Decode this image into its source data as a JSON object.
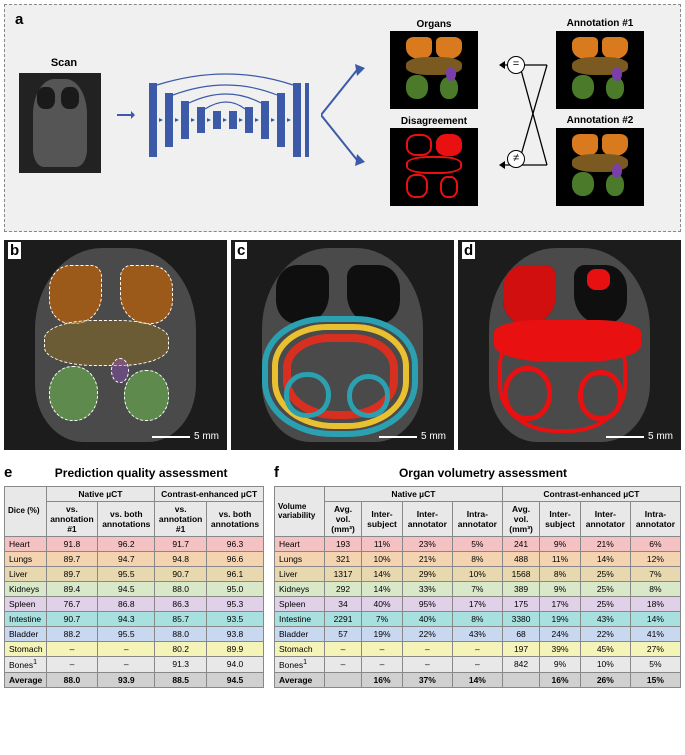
{
  "panel_a": {
    "label": "a",
    "scan_label": "Scan",
    "output_organs_label": "Organs",
    "output_disagree_label": "Disagreement",
    "annotation1_label": "Annotation #1",
    "annotation2_label": "Annotation #2",
    "eq_symbol": "=",
    "neq_symbol": "≠",
    "colors": {
      "unet_bar": "#3c5aa8",
      "arrow": "#3c5aa8",
      "lung": "#d97a1f",
      "liver": "#7a5a20",
      "kidney": "#4a7a2a",
      "spleen": "#7a3fa8",
      "disagree": "#e81010"
    }
  },
  "panel_b": {
    "label": "b",
    "scale": "5 mm"
  },
  "panel_c": {
    "label": "c",
    "scale": "5 mm"
  },
  "panel_d": {
    "label": "d",
    "scale": "5 mm"
  },
  "scale_label": "5 mm",
  "table_e": {
    "label": "e",
    "title": "Prediction quality assessment",
    "corner": "Dice (%)",
    "group1": "Native µCT",
    "group2": "Contrast-enhanced µCT",
    "sub1": "vs. annotation #1",
    "sub2": "vs. both annotations",
    "rows": [
      {
        "cls": "heart",
        "name": "Heart",
        "v": [
          "91.8",
          "96.2",
          "91.7",
          "96.3"
        ]
      },
      {
        "cls": "lungs",
        "name": "Lungs",
        "v": [
          "89.7",
          "94.7",
          "94.8",
          "96.6"
        ]
      },
      {
        "cls": "liver",
        "name": "Liver",
        "v": [
          "89.7",
          "95.5",
          "90.7",
          "96.1"
        ]
      },
      {
        "cls": "kidneys",
        "name": "Kidneys",
        "v": [
          "89.4",
          "94.5",
          "88.0",
          "95.0"
        ]
      },
      {
        "cls": "spleen",
        "name": "Spleen",
        "v": [
          "76.7",
          "86.8",
          "86.3",
          "95.3"
        ]
      },
      {
        "cls": "intestine",
        "name": "Intestine",
        "v": [
          "90.7",
          "94.3",
          "85.7",
          "93.5"
        ]
      },
      {
        "cls": "bladder",
        "name": "Bladder",
        "v": [
          "88.2",
          "95.5",
          "88.0",
          "93.8"
        ]
      },
      {
        "cls": "stomach",
        "name": "Stomach",
        "v": [
          "–",
          "–",
          "80.2",
          "89.9"
        ]
      },
      {
        "cls": "bones",
        "name": "Bones",
        "sup": "1",
        "v": [
          "–",
          "–",
          "91.3",
          "94.0"
        ]
      },
      {
        "cls": "average",
        "name": "Average",
        "v": [
          "88.0",
          "93.9",
          "88.5",
          "94.5"
        ]
      }
    ]
  },
  "table_f": {
    "label": "f",
    "title": "Organ volumetry assessment",
    "corner": "Volume variability",
    "group1": "Native µCT",
    "group2": "Contrast-enhanced µCT",
    "sub_avg": "Avg. vol. (mm³)",
    "sub_inter_subj": "Inter-subject",
    "sub_inter_annot": "Inter-annotator",
    "sub_intra_annot": "Intra-annotator",
    "rows": [
      {
        "cls": "heart",
        "name": "Heart",
        "v": [
          "193",
          "11%",
          "23%",
          "5%",
          "241",
          "9%",
          "21%",
          "6%"
        ]
      },
      {
        "cls": "lungs",
        "name": "Lungs",
        "v": [
          "321",
          "10%",
          "21%",
          "8%",
          "488",
          "11%",
          "14%",
          "12%"
        ]
      },
      {
        "cls": "liver",
        "name": "Liver",
        "v": [
          "1317",
          "14%",
          "29%",
          "10%",
          "1568",
          "8%",
          "25%",
          "7%"
        ]
      },
      {
        "cls": "kidneys",
        "name": "Kidneys",
        "v": [
          "292",
          "14%",
          "33%",
          "7%",
          "389",
          "9%",
          "25%",
          "8%"
        ]
      },
      {
        "cls": "spleen",
        "name": "Spleen",
        "v": [
          "34",
          "40%",
          "95%",
          "17%",
          "175",
          "17%",
          "25%",
          "18%"
        ]
      },
      {
        "cls": "intestine",
        "name": "Intestine",
        "v": [
          "2291",
          "7%",
          "40%",
          "8%",
          "3380",
          "19%",
          "43%",
          "14%"
        ]
      },
      {
        "cls": "bladder",
        "name": "Bladder",
        "v": [
          "57",
          "19%",
          "22%",
          "43%",
          "68",
          "24%",
          "22%",
          "41%"
        ]
      },
      {
        "cls": "stomach",
        "name": "Stomach",
        "v": [
          "–",
          "–",
          "–",
          "–",
          "197",
          "39%",
          "45%",
          "27%"
        ]
      },
      {
        "cls": "bones",
        "name": "Bones",
        "sup": "1",
        "v": [
          "–",
          "–",
          "–",
          "–",
          "842",
          "9%",
          "10%",
          "5%"
        ]
      },
      {
        "cls": "average",
        "name": "Average",
        "v": [
          "",
          "16%",
          "37%",
          "14%",
          "",
          "16%",
          "26%",
          "15%"
        ]
      }
    ]
  }
}
